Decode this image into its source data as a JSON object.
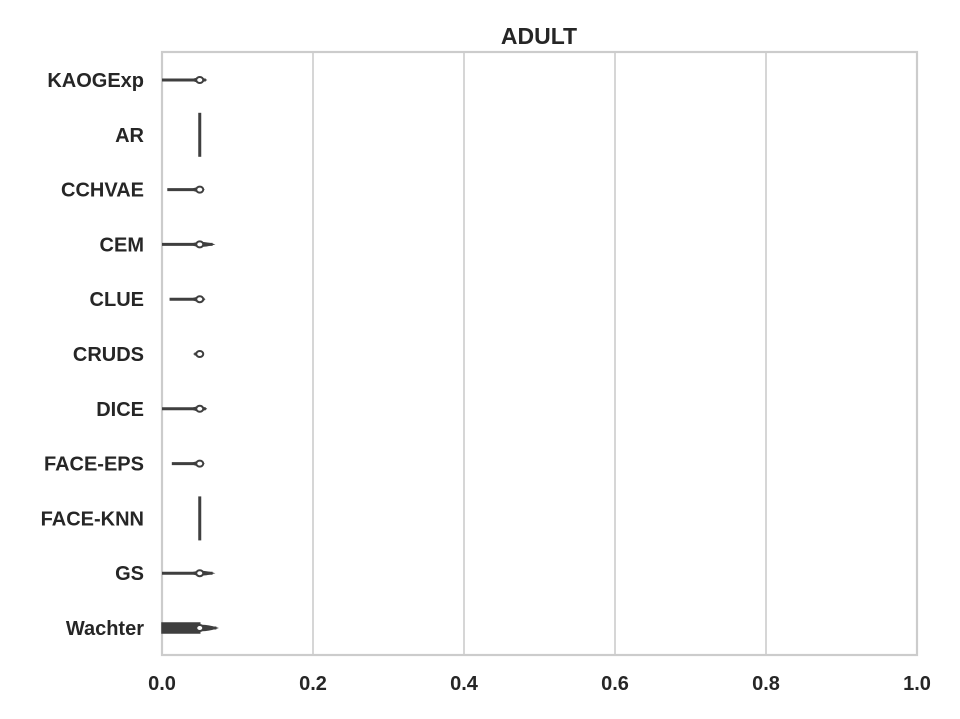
{
  "chart_data": {
    "type": "violin",
    "orientation": "horizontal",
    "title": "ADULT",
    "xlabel": "",
    "ylabel": "",
    "xlim": [
      0.0,
      1.0
    ],
    "xticks": [
      "0.0",
      "0.2",
      "0.4",
      "0.6",
      "0.8",
      "1.0"
    ],
    "xtick_values": [
      0.0,
      0.2,
      0.4,
      0.6,
      0.8,
      1.0
    ],
    "grid": "vertical",
    "legend": "none",
    "color": "#3f3f3f",
    "categories": [
      "KAOGExp",
      "AR",
      "CCHVAE",
      "CEM",
      "CLUE",
      "CRUDS",
      "DICE",
      "FACE-EPS",
      "FACE-KNN",
      "GS",
      "Wachter"
    ],
    "violins": [
      {
        "name": "KAOGExp",
        "min": 0.0,
        "max": 0.058,
        "median": 0.05
      },
      {
        "name": "AR",
        "min": 0.05,
        "max": 0.05,
        "median": 0.05
      },
      {
        "name": "CCHVAE",
        "min": 0.007,
        "max": 0.055,
        "median": 0.05
      },
      {
        "name": "CEM",
        "min": 0.0,
        "max": 0.067,
        "median": 0.05
      },
      {
        "name": "CLUE",
        "min": 0.01,
        "max": 0.056,
        "median": 0.05
      },
      {
        "name": "CRUDS",
        "min": 0.043,
        "max": 0.052,
        "median": 0.05
      },
      {
        "name": "DICE",
        "min": 0.0,
        "max": 0.058,
        "median": 0.05
      },
      {
        "name": "FACE-EPS",
        "min": 0.013,
        "max": 0.055,
        "median": 0.05
      },
      {
        "name": "FACE-KNN",
        "min": 0.05,
        "max": 0.05,
        "median": 0.05
      },
      {
        "name": "GS",
        "min": 0.0,
        "max": 0.067,
        "median": 0.05
      },
      {
        "name": "Wachter",
        "min": 0.0,
        "max": 0.072,
        "median": 0.05
      }
    ]
  }
}
